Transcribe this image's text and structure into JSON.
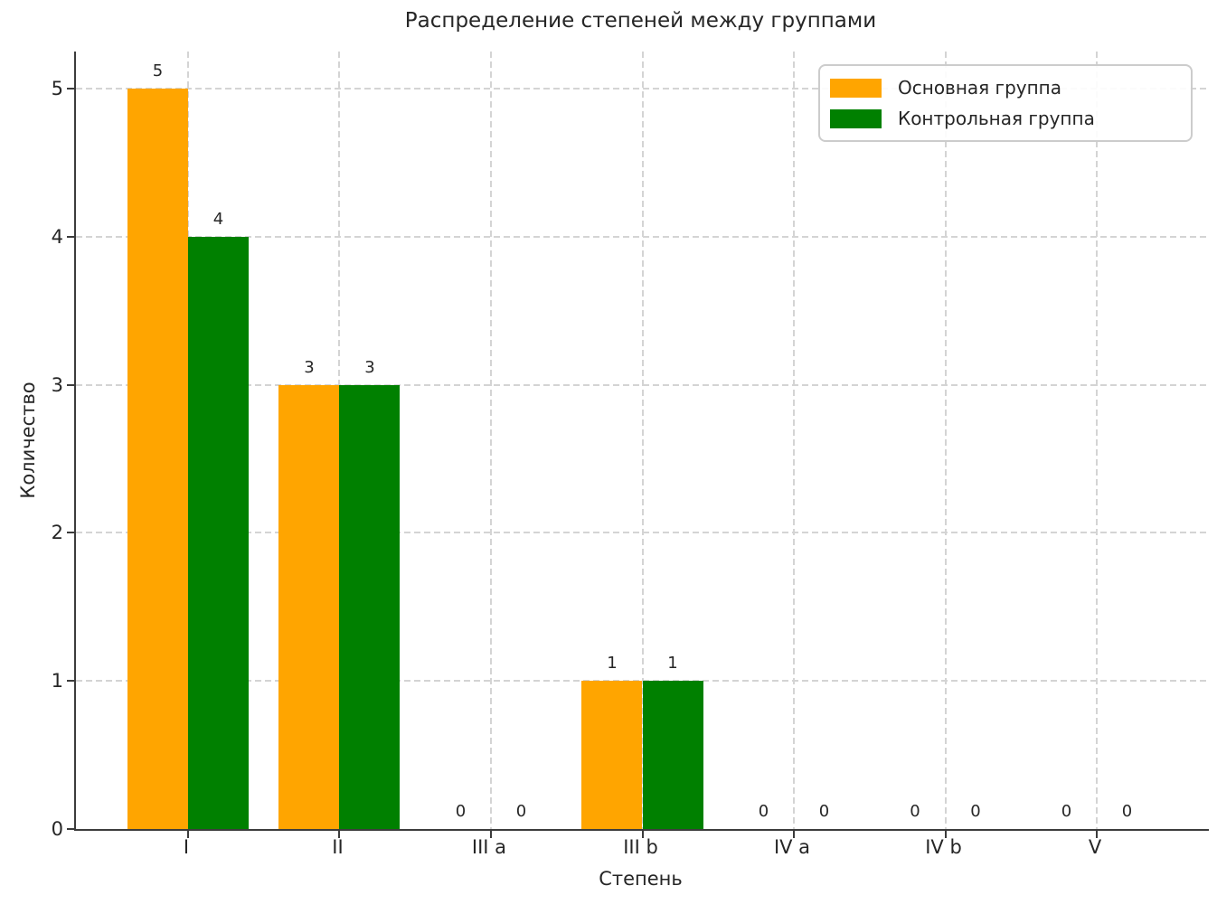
{
  "chart_data": {
    "type": "bar",
    "title": "Распределение степеней между группами",
    "xlabel": "Степень",
    "ylabel": "Количество",
    "categories": [
      "I",
      "II",
      "III a",
      "III b",
      "IV a",
      "IV b",
      "V"
    ],
    "series": [
      {
        "name": "Основная группа",
        "color": "#FFA500",
        "values": [
          5,
          3,
          0,
          1,
          0,
          0,
          0
        ]
      },
      {
        "name": "Контрольная группа",
        "color": "#008000",
        "values": [
          4,
          3,
          0,
          1,
          0,
          0,
          0
        ]
      }
    ],
    "bar_width": 0.4,
    "xlim": [
      -0.74,
      6.74
    ],
    "ylim": [
      0,
      5.25
    ],
    "yticks": [
      0,
      1,
      2,
      3,
      4,
      5
    ],
    "grid": true,
    "grid_style": "dashed",
    "legend_position": "upper right",
    "value_labels": true
  },
  "colors": {
    "text": "#262626",
    "spine": "#3c3c3c",
    "grid": "#d4d4d4",
    "legend_border": "#cccccc",
    "background": "#ffffff"
  }
}
